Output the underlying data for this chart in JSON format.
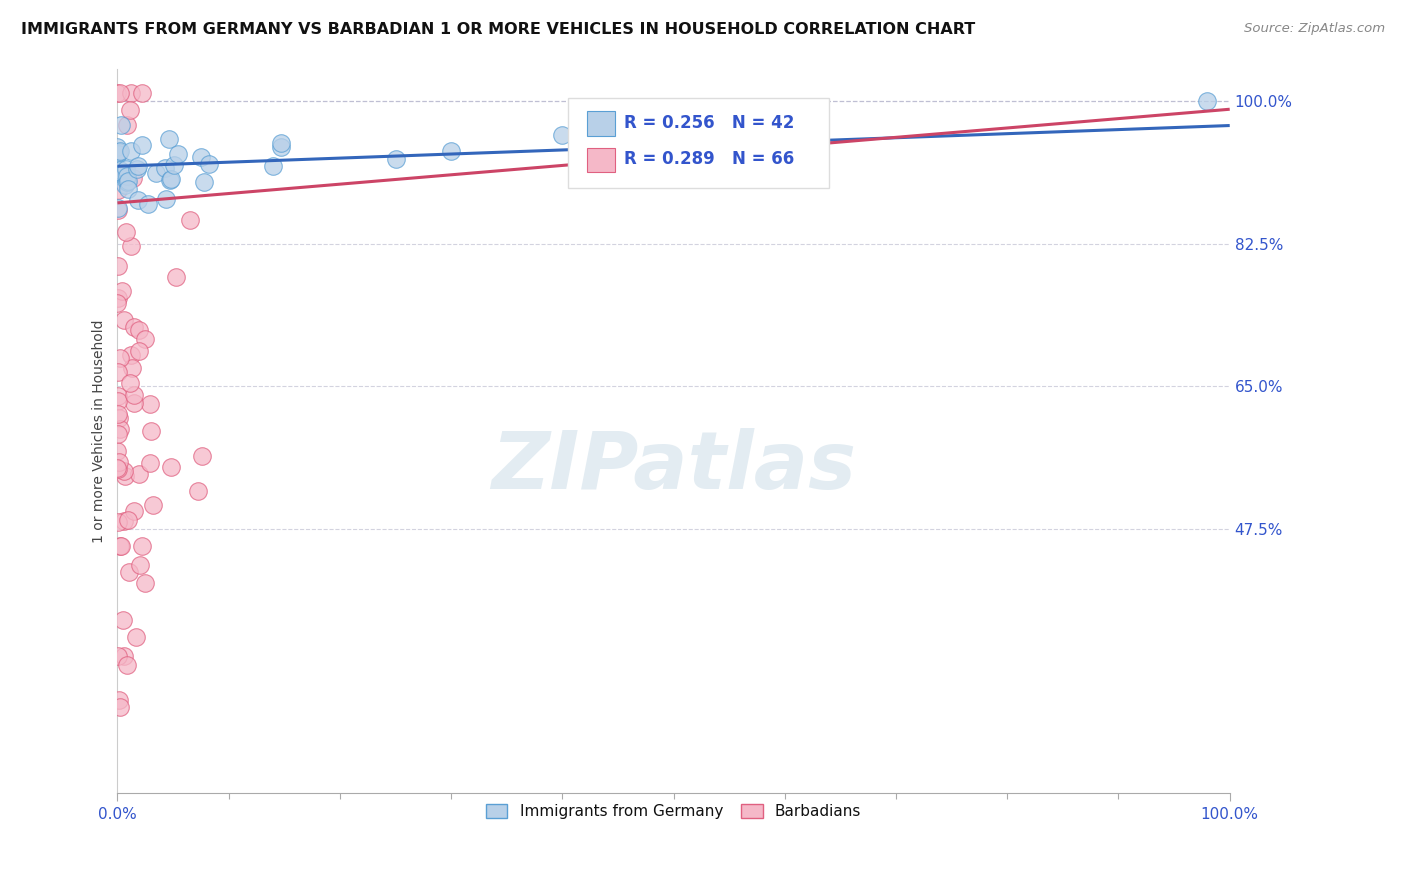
{
  "title": "IMMIGRANTS FROM GERMANY VS BARBADIAN 1 OR MORE VEHICLES IN HOUSEHOLD CORRELATION CHART",
  "source": "Source: ZipAtlas.com",
  "ylabel": "1 or more Vehicles in Household",
  "ytick_positions": [
    1.0,
    0.825,
    0.65,
    0.475
  ],
  "ytick_labels": [
    "100.0%",
    "82.5%",
    "65.0%",
    "47.5%"
  ],
  "xtick_positions": [
    0.0,
    1.0
  ],
  "xtick_labels": [
    "0.0%",
    "100.0%"
  ],
  "legend_blue_r": "R = 0.256",
  "legend_blue_n": "N = 42",
  "legend_pink_r": "R = 0.289",
  "legend_pink_n": "N = 66",
  "blue_fill_color": "#b8d0e8",
  "blue_edge_color": "#5a9fd4",
  "pink_fill_color": "#f5b8c8",
  "pink_edge_color": "#e06080",
  "blue_line_color": "#3366bb",
  "pink_line_color": "#cc4466",
  "grid_color": "#c8c8d8",
  "top_dash_color": "#b0b0c8",
  "watermark_color": "#ccdde8",
  "title_color": "#111111",
  "source_color": "#888888",
  "ylabel_color": "#444444",
  "tick_color": "#3355cc",
  "legend_r_color": "#3355cc",
  "legend_n_color": "#111111",
  "bottom_legend_color": "#111111",
  "xmin": 0.0,
  "xmax": 1.0,
  "ymin": 0.15,
  "ymax": 1.04
}
